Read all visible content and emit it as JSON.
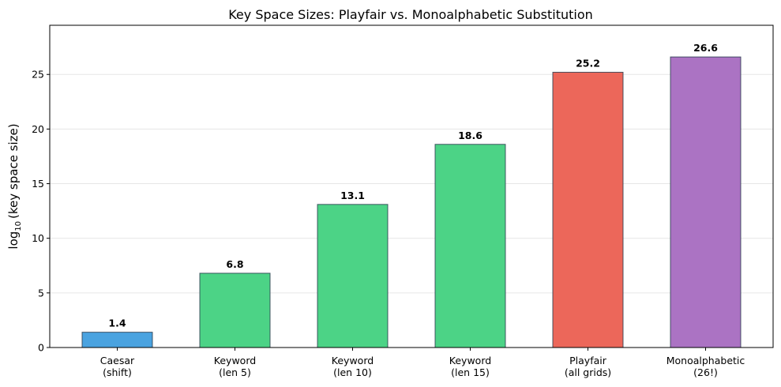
{
  "chart_data": {
    "type": "bar",
    "title": "Key Space Sizes: Playfair vs. Monoalphabetic Substitution",
    "ylabel_main": "log",
    "ylabel_sub": "10",
    "ylabel_rest": "(key space size)",
    "xlabel": "",
    "ylim": [
      0,
      29.5
    ],
    "yticks": [
      0,
      5,
      10,
      15,
      20,
      25
    ],
    "grid": "y",
    "categories": [
      [
        "Caesar",
        "(shift)"
      ],
      [
        "Keyword",
        "(len 5)"
      ],
      [
        "Keyword",
        "(len 10)"
      ],
      [
        "Keyword",
        "(len 15)"
      ],
      [
        "Playfair",
        "(all grids)"
      ],
      [
        "Monoalphabetic",
        "(26!)"
      ]
    ],
    "values": [
      1.4,
      6.8,
      13.1,
      18.6,
      25.2,
      26.6
    ],
    "value_labels": [
      "1.4",
      "6.8",
      "13.1",
      "18.6",
      "25.2",
      "26.6"
    ],
    "colors": [
      "#4aa3e0",
      "#4cd386",
      "#4cd386",
      "#4cd386",
      "#ec675a",
      "#ab73c3"
    ],
    "edge_color": "#2c3e50"
  }
}
